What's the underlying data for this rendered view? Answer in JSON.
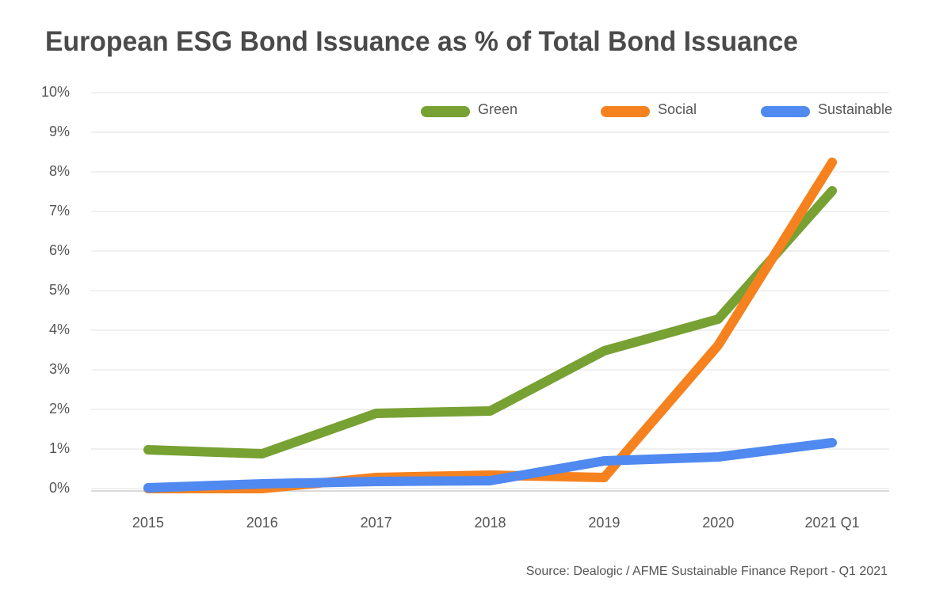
{
  "chart_data": {
    "type": "line",
    "title": "European ESG Bond Issuance as % of Total Bond Issuance",
    "source": "Source: Dealogic / AFME Sustainable Finance Report - Q1 2021",
    "categories": [
      "2015",
      "2016",
      "2017",
      "2018",
      "2019",
      "2020",
      "2021 Q1"
    ],
    "series": [
      {
        "name": "Green",
        "color": "#77a132",
        "values": [
          0.98,
          0.88,
          1.9,
          1.96,
          3.48,
          4.28,
          7.52
        ]
      },
      {
        "name": "Social",
        "color": "#f5821f",
        "values": [
          0,
          0,
          0.28,
          0.34,
          0.28,
          3.62,
          8.24
        ]
      },
      {
        "name": "Sustainable",
        "color": "#5089f0",
        "values": [
          0.02,
          0.12,
          0.18,
          0.2,
          0.7,
          0.8,
          1.16
        ]
      }
    ],
    "ylim": [
      0,
      10
    ],
    "yticks": [
      {
        "value": 0,
        "label": "0%"
      },
      {
        "value": 1,
        "label": "1%"
      },
      {
        "value": 2,
        "label": "2%"
      },
      {
        "value": 3,
        "label": "3%"
      },
      {
        "value": 4,
        "label": "4%"
      },
      {
        "value": 5,
        "label": "5%"
      },
      {
        "value": 6,
        "label": "6%"
      },
      {
        "value": 7,
        "label": "7%"
      },
      {
        "value": 8,
        "label": "8%"
      },
      {
        "value": 9,
        "label": "9%"
      },
      {
        "value": 10,
        "label": "10%"
      }
    ],
    "grid": true,
    "legend": "top"
  }
}
